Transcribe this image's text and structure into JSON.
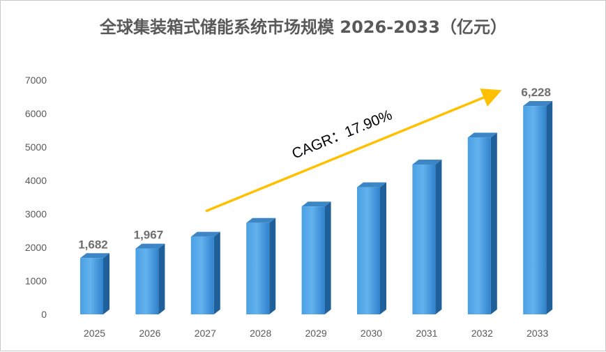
{
  "chart_data": {
    "type": "bar",
    "title": "全球集装箱式储能系统市场规模 2026-2033（亿元）",
    "categories": [
      "2025",
      "2026",
      "2027",
      "2028",
      "2029",
      "2030",
      "2031",
      "2032",
      "2033"
    ],
    "values": [
      1682,
      1967,
      2320,
      2735,
      3225,
      3800,
      4480,
      5283,
      6228
    ],
    "data_labels": [
      {
        "index": 0,
        "text": "1,682"
      },
      {
        "index": 1,
        "text": "1,967"
      },
      {
        "index": 8,
        "text": "6,228"
      }
    ],
    "ylim": [
      0,
      7000
    ],
    "yticks": [
      0,
      1000,
      2000,
      3000,
      4000,
      5000,
      6000,
      7000
    ],
    "grid": false,
    "bar_color": "#3a8fd6",
    "annotation": {
      "text": "CAGR：17.90%",
      "arrow_color": "#ffc000"
    }
  }
}
